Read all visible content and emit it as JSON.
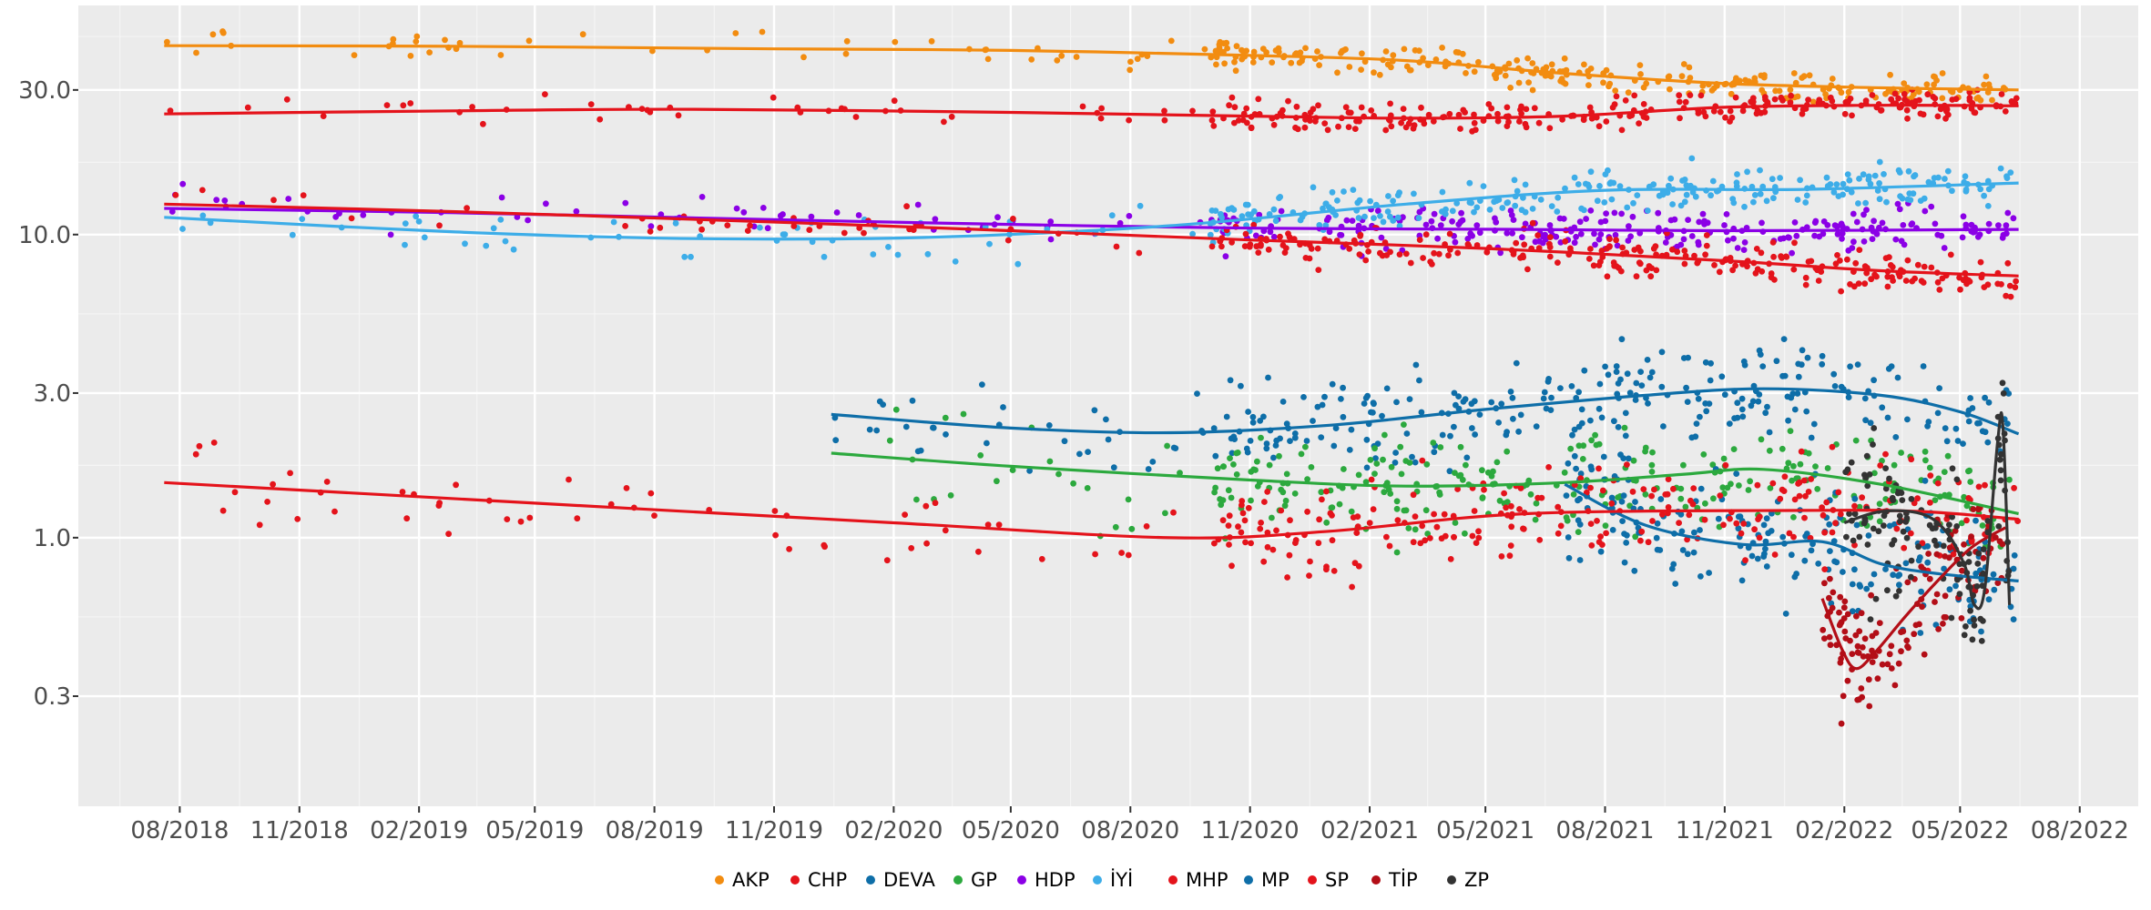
{
  "chart_data": {
    "type": "scatter",
    "title": "",
    "xlabel": "",
    "ylabel": "",
    "y_scale": "log",
    "x_ticks": [
      "08/2018",
      "11/2018",
      "02/2019",
      "05/2019",
      "08/2019",
      "11/2019",
      "02/2020",
      "05/2020",
      "08/2020",
      "11/2020",
      "02/2021",
      "05/2021",
      "08/2021",
      "11/2021",
      "02/2022",
      "05/2022",
      "08/2022"
    ],
    "y_ticks": [
      "0.3",
      "1.0",
      "3.0",
      "10.0",
      "30.0"
    ],
    "xlim": [
      "2018-05-15",
      "2022-09-15"
    ],
    "ylim": [
      0.13,
      57
    ],
    "grid": true,
    "legend_position": "bottom",
    "series": [
      {
        "name": "AKP",
        "color": "#F28C10",
        "trend": [
          [
            "2018-07-20",
            42.0
          ],
          [
            "2019-03-01",
            41.8
          ],
          [
            "2019-11-01",
            41.0
          ],
          [
            "2020-05-01",
            40.5
          ],
          [
            "2020-11-01",
            39.0
          ],
          [
            "2021-03-01",
            37.5
          ],
          [
            "2021-07-01",
            34.0
          ],
          [
            "2021-11-01",
            31.5
          ],
          [
            "2022-03-01",
            30.5
          ],
          [
            "2022-06-15",
            30.0
          ]
        ]
      },
      {
        "name": "CHP",
        "color": "#E4131B",
        "trend": [
          [
            "2018-07-20",
            25.0
          ],
          [
            "2019-03-01",
            25.6
          ],
          [
            "2019-09-01",
            25.9
          ],
          [
            "2020-05-01",
            25.3
          ],
          [
            "2020-11-01",
            24.6
          ],
          [
            "2021-03-01",
            24.2
          ],
          [
            "2021-07-01",
            24.6
          ],
          [
            "2021-11-01",
            26.3
          ],
          [
            "2022-03-01",
            26.7
          ],
          [
            "2022-06-15",
            26.6
          ]
        ]
      },
      {
        "name": "DEVA",
        "color": "#0E6EA8",
        "trend": [
          [
            "2019-12-15",
            2.55
          ],
          [
            "2020-05-01",
            2.3
          ],
          [
            "2020-09-01",
            2.22
          ],
          [
            "2021-01-01",
            2.35
          ],
          [
            "2021-05-01",
            2.65
          ],
          [
            "2021-09-01",
            2.95
          ],
          [
            "2021-12-01",
            3.1
          ],
          [
            "2022-03-01",
            2.95
          ],
          [
            "2022-05-01",
            2.6
          ],
          [
            "2022-06-15",
            2.2
          ]
        ]
      },
      {
        "name": "GP",
        "color": "#2CA93E",
        "trend": [
          [
            "2019-12-15",
            1.9
          ],
          [
            "2020-05-01",
            1.72
          ],
          [
            "2020-11-01",
            1.55
          ],
          [
            "2021-03-01",
            1.48
          ],
          [
            "2021-07-01",
            1.52
          ],
          [
            "2021-10-01",
            1.62
          ],
          [
            "2021-12-01",
            1.68
          ],
          [
            "2022-03-01",
            1.5
          ],
          [
            "2022-06-15",
            1.2
          ]
        ]
      },
      {
        "name": "HDP",
        "color": "#8B00E6",
        "trend": [
          [
            "2018-07-20",
            12.2
          ],
          [
            "2019-03-01",
            11.8
          ],
          [
            "2019-11-01",
            11.2
          ],
          [
            "2020-05-01",
            10.8
          ],
          [
            "2020-11-01",
            10.5
          ],
          [
            "2021-06-01",
            10.4
          ],
          [
            "2021-11-01",
            10.3
          ],
          [
            "2022-06-15",
            10.4
          ]
        ]
      },
      {
        "name": "İYİ",
        "color": "#3DADE8",
        "trend": [
          [
            "2018-07-20",
            11.4
          ],
          [
            "2019-03-01",
            10.2
          ],
          [
            "2019-09-01",
            9.7
          ],
          [
            "2020-03-01",
            9.8
          ],
          [
            "2020-09-01",
            10.7
          ],
          [
            "2021-03-01",
            12.6
          ],
          [
            "2021-08-01",
            14.0
          ],
          [
            "2022-01-01",
            14.1
          ],
          [
            "2022-06-15",
            14.8
          ]
        ]
      },
      {
        "name": "MHP",
        "color": "#E4131B",
        "trend": [
          [
            "2018-07-20",
            12.6
          ],
          [
            "2019-03-01",
            11.9
          ],
          [
            "2019-11-01",
            11.0
          ],
          [
            "2020-05-01",
            10.3
          ],
          [
            "2020-11-01",
            9.6
          ],
          [
            "2021-05-01",
            9.0
          ],
          [
            "2021-11-01",
            8.2
          ],
          [
            "2022-03-01",
            7.6
          ],
          [
            "2022-06-15",
            7.3
          ]
        ]
      },
      {
        "name": "MP",
        "color": "#0E6EA8",
        "trend": [
          [
            "2021-07-01",
            1.5
          ],
          [
            "2021-09-01",
            1.1
          ],
          [
            "2021-11-15",
            0.95
          ],
          [
            "2022-01-15",
            0.97
          ],
          [
            "2022-03-01",
            0.82
          ],
          [
            "2022-04-15",
            0.76
          ],
          [
            "2022-06-15",
            0.72
          ]
        ]
      },
      {
        "name": "SP",
        "color": "#E4131B",
        "trend": [
          [
            "2018-07-20",
            1.52
          ],
          [
            "2019-05-01",
            1.3
          ],
          [
            "2020-02-01",
            1.12
          ],
          [
            "2020-09-01",
            1.0
          ],
          [
            "2021-01-01",
            1.05
          ],
          [
            "2021-06-01",
            1.2
          ],
          [
            "2022-01-01",
            1.23
          ],
          [
            "2022-04-01",
            1.22
          ],
          [
            "2022-06-15",
            1.15
          ]
        ]
      },
      {
        "name": "TİP",
        "color": "#B30E17",
        "trend": [
          [
            "2022-01-15",
            0.63
          ],
          [
            "2022-01-30",
            0.43
          ],
          [
            "2022-02-10",
            0.37
          ],
          [
            "2022-02-25",
            0.42
          ],
          [
            "2022-03-20",
            0.55
          ],
          [
            "2022-04-15",
            0.73
          ],
          [
            "2022-05-10",
            0.93
          ],
          [
            "2022-06-05",
            1.08
          ]
        ]
      },
      {
        "name": "ZP",
        "color": "#333333",
        "trend": [
          [
            "2022-02-01",
            1.12
          ],
          [
            "2022-03-01",
            1.22
          ],
          [
            "2022-04-01",
            1.2
          ],
          [
            "2022-04-20",
            1.05
          ],
          [
            "2022-05-05",
            0.8
          ],
          [
            "2022-05-12",
            0.6
          ],
          [
            "2022-05-20",
            0.68
          ],
          [
            "2022-05-30",
            2.1
          ],
          [
            "2022-06-03",
            2.3
          ],
          [
            "2022-06-08",
            0.6
          ]
        ]
      }
    ]
  }
}
